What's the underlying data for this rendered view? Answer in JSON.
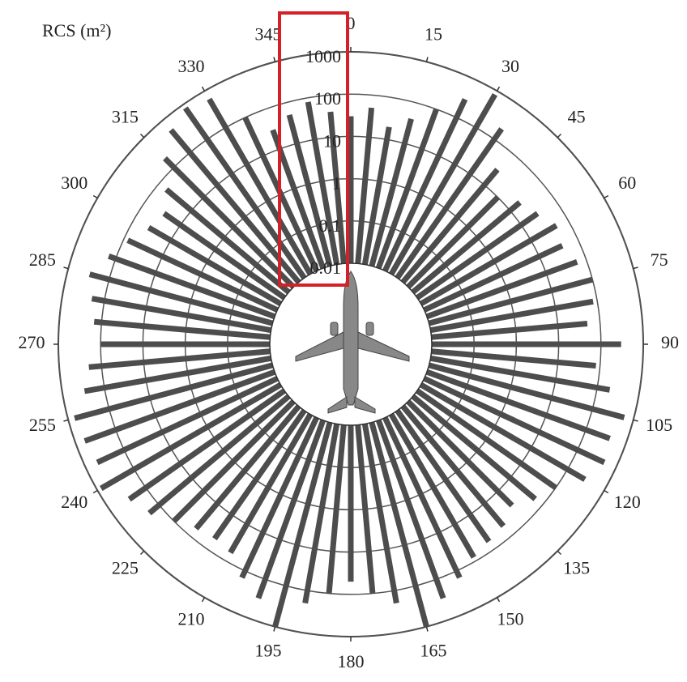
{
  "chart_data": {
    "type": "polar",
    "r_label": "RCS (m²)",
    "theta": [
      0,
      5,
      10,
      15,
      20,
      25,
      30,
      35,
      40,
      45,
      50,
      55,
      60,
      65,
      70,
      75,
      80,
      85,
      90,
      95,
      100,
      105,
      110,
      115,
      120,
      125,
      130,
      135,
      140,
      145,
      150,
      155,
      160,
      165,
      170,
      175,
      180,
      185,
      190,
      195,
      200,
      205,
      210,
      215,
      220,
      225,
      230,
      235,
      240,
      245,
      250,
      255,
      260,
      265,
      270,
      275,
      280,
      285,
      290,
      295,
      300,
      305,
      310,
      315,
      320,
      325,
      330,
      335,
      340,
      345,
      350,
      355
    ],
    "values": [
      30,
      50,
      20,
      40,
      100,
      300,
      800,
      200,
      30,
      10,
      20,
      30,
      50,
      40,
      60,
      100,
      80,
      50,
      300,
      80,
      200,
      600,
      400,
      500,
      300,
      100,
      60,
      30,
      50,
      60,
      80,
      150,
      300,
      1000,
      200,
      100,
      50,
      100,
      200,
      1000,
      300,
      150,
      60,
      50,
      60,
      100,
      200,
      300,
      800,
      500,
      600,
      700,
      300,
      200,
      100,
      150,
      200,
      300,
      150,
      80,
      40,
      30,
      60,
      200,
      500,
      800,
      600,
      100,
      30,
      50,
      80,
      40
    ],
    "color": "#4d4d4d",
    "rlim": [
      0.01,
      1000
    ],
    "rticks": [
      0.01,
      0.1,
      1,
      10,
      100,
      1000
    ],
    "log_r": true,
    "thetaticks": [
      0,
      15,
      30,
      45,
      60,
      75,
      90,
      105,
      120,
      135,
      150,
      165,
      180,
      195,
      210,
      225,
      240,
      255,
      270,
      285,
      300,
      315,
      330,
      345
    ]
  }
}
